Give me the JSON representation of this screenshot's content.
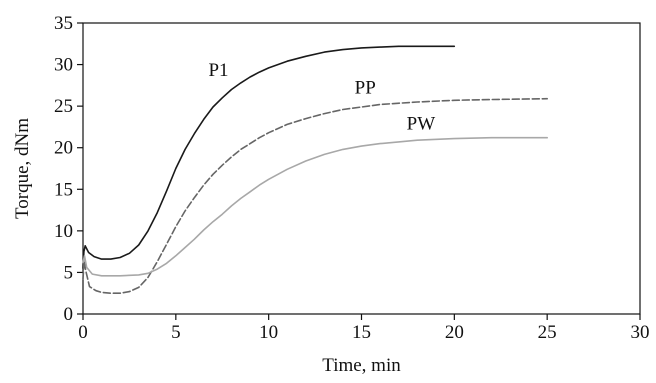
{
  "chart_data": {
    "type": "line",
    "title": "",
    "xlabel": "Time, min",
    "ylabel": "Torque, dNm",
    "xlim": [
      0,
      30
    ],
    "ylim": [
      0,
      35
    ],
    "x_ticks": [
      "0",
      "5",
      "10",
      "15",
      "20",
      "25",
      "30"
    ],
    "y_ticks": [
      "0",
      "5",
      "10",
      "15",
      "20",
      "25",
      "30",
      "35"
    ],
    "grid": false,
    "legend": "none",
    "series": [
      {
        "name": "P1",
        "color": "#1a1a1a",
        "dash": "solid",
        "points": [
          [
            0,
            5.5
          ],
          [
            0.05,
            7.5
          ],
          [
            0.12,
            8.2
          ],
          [
            0.3,
            7.4
          ],
          [
            0.6,
            6.9
          ],
          [
            1.0,
            6.6
          ],
          [
            1.5,
            6.6
          ],
          [
            2.0,
            6.8
          ],
          [
            2.5,
            7.3
          ],
          [
            3.0,
            8.3
          ],
          [
            3.5,
            10.0
          ],
          [
            4.0,
            12.2
          ],
          [
            4.5,
            14.8
          ],
          [
            5.0,
            17.5
          ],
          [
            5.5,
            19.8
          ],
          [
            6.0,
            21.7
          ],
          [
            6.5,
            23.4
          ],
          [
            7.0,
            24.9
          ],
          [
            7.5,
            26.0
          ],
          [
            8.0,
            27.0
          ],
          [
            8.5,
            27.8
          ],
          [
            9.0,
            28.5
          ],
          [
            9.5,
            29.1
          ],
          [
            10.0,
            29.6
          ],
          [
            11.0,
            30.4
          ],
          [
            12.0,
            31.0
          ],
          [
            13.0,
            31.5
          ],
          [
            14.0,
            31.8
          ],
          [
            15.0,
            32.0
          ],
          [
            16.0,
            32.1
          ],
          [
            17.0,
            32.2
          ],
          [
            18.0,
            32.2
          ],
          [
            19.0,
            32.2
          ],
          [
            20.0,
            32.2
          ]
        ]
      },
      {
        "name": "PP",
        "color": "#666666",
        "dash": "dashed",
        "points": [
          [
            0,
            4.2
          ],
          [
            0.06,
            6.4
          ],
          [
            0.15,
            5.2
          ],
          [
            0.35,
            3.3
          ],
          [
            0.7,
            2.8
          ],
          [
            1.0,
            2.6
          ],
          [
            1.5,
            2.5
          ],
          [
            2.0,
            2.5
          ],
          [
            2.5,
            2.7
          ],
          [
            3.0,
            3.2
          ],
          [
            3.5,
            4.4
          ],
          [
            4.0,
            6.3
          ],
          [
            4.5,
            8.4
          ],
          [
            5.0,
            10.5
          ],
          [
            5.5,
            12.4
          ],
          [
            6.0,
            14.0
          ],
          [
            6.5,
            15.5
          ],
          [
            7.0,
            16.8
          ],
          [
            7.5,
            17.9
          ],
          [
            8.0,
            18.9
          ],
          [
            8.5,
            19.8
          ],
          [
            9.0,
            20.5
          ],
          [
            9.5,
            21.2
          ],
          [
            10.0,
            21.8
          ],
          [
            11.0,
            22.8
          ],
          [
            12.0,
            23.5
          ],
          [
            13.0,
            24.1
          ],
          [
            14.0,
            24.6
          ],
          [
            15.0,
            24.9
          ],
          [
            16.0,
            25.2
          ],
          [
            18.0,
            25.5
          ],
          [
            20.0,
            25.7
          ],
          [
            22.0,
            25.8
          ],
          [
            25.0,
            25.9
          ]
        ]
      },
      {
        "name": "PW",
        "color": "#a8a8a8",
        "dash": "solid",
        "points": [
          [
            0,
            6.2
          ],
          [
            0.08,
            7.0
          ],
          [
            0.2,
            5.6
          ],
          [
            0.5,
            4.8
          ],
          [
            1.0,
            4.6
          ],
          [
            2.0,
            4.6
          ],
          [
            3.0,
            4.7
          ],
          [
            3.5,
            4.9
          ],
          [
            4.0,
            5.4
          ],
          [
            4.5,
            6.1
          ],
          [
            5.0,
            7.0
          ],
          [
            5.5,
            8.0
          ],
          [
            6.0,
            9.0
          ],
          [
            6.5,
            10.1
          ],
          [
            7.0,
            11.1
          ],
          [
            7.5,
            12.0
          ],
          [
            8.0,
            13.0
          ],
          [
            8.5,
            13.9
          ],
          [
            9.0,
            14.7
          ],
          [
            9.5,
            15.5
          ],
          [
            10.0,
            16.2
          ],
          [
            11.0,
            17.4
          ],
          [
            12.0,
            18.4
          ],
          [
            13.0,
            19.2
          ],
          [
            14.0,
            19.8
          ],
          [
            15.0,
            20.2
          ],
          [
            16.0,
            20.5
          ],
          [
            17.0,
            20.7
          ],
          [
            18.0,
            20.9
          ],
          [
            20.0,
            21.1
          ],
          [
            22.0,
            21.2
          ],
          [
            25.0,
            21.2
          ]
        ]
      }
    ],
    "annotations": [
      {
        "text": "P1",
        "x": 7.3,
        "y": 28.6
      },
      {
        "text": "PP",
        "x": 15.2,
        "y": 26.5
      },
      {
        "text": "PW",
        "x": 18.2,
        "y": 22.2
      }
    ]
  }
}
